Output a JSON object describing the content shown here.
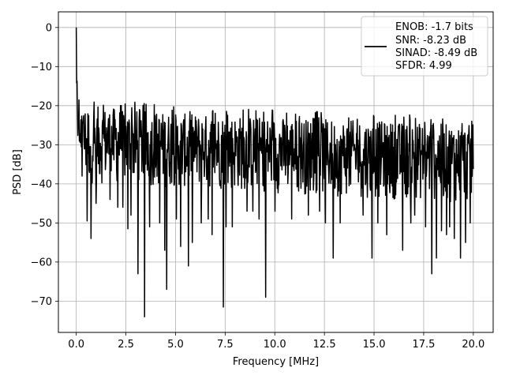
{
  "chart_data": {
    "type": "line",
    "title": "",
    "xlabel": "Frequency [MHz]",
    "ylabel": "PSD [dB]",
    "xlim": [
      -0.9,
      21.0
    ],
    "ylim": [
      -78,
      4
    ],
    "xticks": [
      0.0,
      2.5,
      5.0,
      7.5,
      10.0,
      12.5,
      15.0,
      17.5,
      20.0
    ],
    "xtick_labels": [
      "0.0",
      "2.5",
      "5.0",
      "7.5",
      "10.0",
      "12.5",
      "15.0",
      "17.5",
      "20.0"
    ],
    "yticks": [
      0,
      -10,
      -20,
      -30,
      -40,
      -50,
      -60,
      -70
    ],
    "ytick_labels": [
      "0",
      "−10",
      "−20",
      "−30",
      "−40",
      "−50",
      "−60",
      "−70"
    ],
    "grid": true,
    "legend_position": "top-right",
    "series": [
      {
        "name": "ENOB: -1.7 bits\nSNR: -8.23 dB\nSINAD: -8.49 dB\nSFDR: 4.99",
        "color": "#000000",
        "x_start": 0.0,
        "x_end": 20.0,
        "n_points": 1024,
        "peak": {
          "x": 0.0,
          "y": 0.0
        },
        "initial_decay": [
          [
            0.02,
            -5
          ],
          [
            0.05,
            -12
          ],
          [
            0.1,
            -15
          ],
          [
            0.2,
            -18
          ],
          [
            0.35,
            -22
          ]
        ],
        "noise_floor_mean": -32,
        "upper_envelope": [
          [
            0.5,
            -20
          ],
          [
            5.0,
            -22
          ],
          [
            10.0,
            -23
          ],
          [
            15.0,
            -24
          ],
          [
            20.0,
            -25
          ]
        ],
        "lower_envelope": [
          [
            0.5,
            -40
          ],
          [
            20.0,
            -45
          ]
        ],
        "deep_nulls": [
          {
            "x": 0.3,
            "y": -38
          },
          {
            "x": 0.55,
            "y": -49.5
          },
          {
            "x": 0.75,
            "y": -54
          },
          {
            "x": 1.0,
            "y": -45
          },
          {
            "x": 1.7,
            "y": -44
          },
          {
            "x": 2.1,
            "y": -46
          },
          {
            "x": 2.35,
            "y": -46
          },
          {
            "x": 2.6,
            "y": -51.5
          },
          {
            "x": 2.75,
            "y": -48
          },
          {
            "x": 3.1,
            "y": -63
          },
          {
            "x": 3.45,
            "y": -74
          },
          {
            "x": 3.7,
            "y": -51
          },
          {
            "x": 4.2,
            "y": -50
          },
          {
            "x": 4.45,
            "y": -57
          },
          {
            "x": 4.55,
            "y": -67
          },
          {
            "x": 5.05,
            "y": -49
          },
          {
            "x": 5.25,
            "y": -56
          },
          {
            "x": 5.65,
            "y": -61
          },
          {
            "x": 5.85,
            "y": -55
          },
          {
            "x": 6.3,
            "y": -50
          },
          {
            "x": 6.65,
            "y": -49
          },
          {
            "x": 6.85,
            "y": -53
          },
          {
            "x": 7.4,
            "y": -71.5
          },
          {
            "x": 7.55,
            "y": -51
          },
          {
            "x": 7.85,
            "y": -51
          },
          {
            "x": 8.6,
            "y": -47
          },
          {
            "x": 8.9,
            "y": -47
          },
          {
            "x": 9.2,
            "y": -49
          },
          {
            "x": 9.55,
            "y": -69
          },
          {
            "x": 10.0,
            "y": -47
          },
          {
            "x": 10.85,
            "y": -49
          },
          {
            "x": 11.7,
            "y": -48
          },
          {
            "x": 12.25,
            "y": -47
          },
          {
            "x": 12.55,
            "y": -50
          },
          {
            "x": 12.95,
            "y": -59
          },
          {
            "x": 13.3,
            "y": -50
          },
          {
            "x": 14.45,
            "y": -48
          },
          {
            "x": 14.9,
            "y": -59
          },
          {
            "x": 15.2,
            "y": -50
          },
          {
            "x": 15.65,
            "y": -53
          },
          {
            "x": 16.45,
            "y": -57
          },
          {
            "x": 16.85,
            "y": -50
          },
          {
            "x": 17.05,
            "y": -48
          },
          {
            "x": 17.6,
            "y": -51
          },
          {
            "x": 17.9,
            "y": -63
          },
          {
            "x": 18.15,
            "y": -59
          },
          {
            "x": 18.4,
            "y": -52
          },
          {
            "x": 18.65,
            "y": -53
          },
          {
            "x": 18.8,
            "y": -51
          },
          {
            "x": 19.05,
            "y": -54
          },
          {
            "x": 19.35,
            "y": -59
          },
          {
            "x": 19.6,
            "y": -55
          },
          {
            "x": 19.85,
            "y": -50
          }
        ]
      }
    ]
  },
  "legend": {
    "lines": [
      "ENOB: -1.7 bits",
      "SNR: -8.23 dB",
      "SINAD: -8.49 dB",
      "SFDR: 4.99"
    ]
  }
}
